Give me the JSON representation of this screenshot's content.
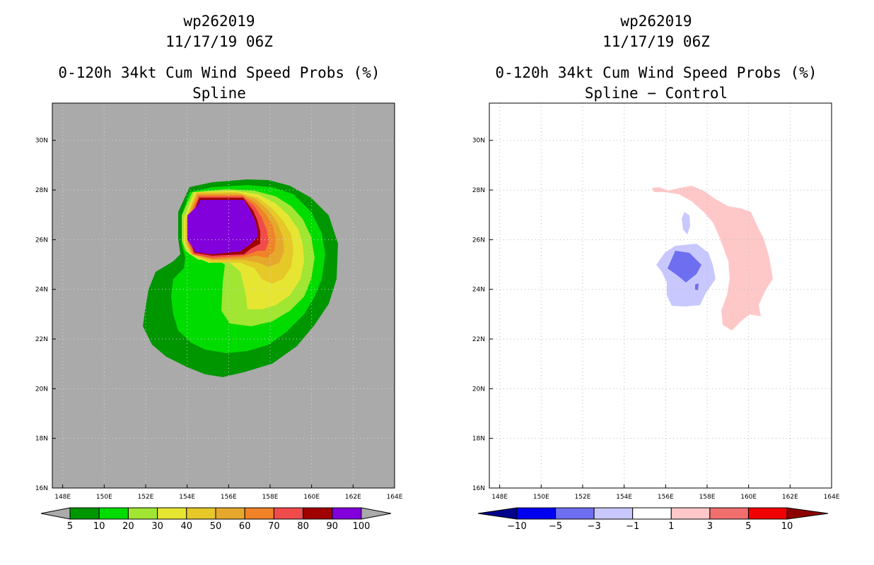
{
  "chart_data": [
    {
      "type": "heatmap",
      "storm_id": "wp262019",
      "datetime": "11/17/19 06Z",
      "title": "0-120h 34kt Cum Wind Speed Probs (%)",
      "subtitle": "Spline",
      "xlabel": "",
      "ylabel": "",
      "xlim": [
        147.5,
        164
      ],
      "ylim": [
        16,
        31.5
      ],
      "x_ticks": [
        "148E",
        "150E",
        "152E",
        "154E",
        "156E",
        "158E",
        "160E",
        "162E",
        "164E"
      ],
      "y_ticks": [
        "16N",
        "18N",
        "20N",
        "22N",
        "24N",
        "26N",
        "28N",
        "30N"
      ],
      "grid": true,
      "colorbar_levels": [
        "5",
        "10",
        "20",
        "30",
        "40",
        "50",
        "60",
        "70",
        "80",
        "90",
        "100"
      ],
      "colors": {
        "background": "#aaaaaa",
        "bins": [
          "#009600",
          "#00dc00",
          "#a0e632",
          "#e6e632",
          "#e6c828",
          "#e6a82c",
          "#f08228",
          "#f04b4b",
          "#a00000",
          "#8200dc"
        ]
      }
    },
    {
      "type": "heatmap",
      "storm_id": "wp262019",
      "datetime": "11/17/19 06Z",
      "title": "0-120h 34kt Cum Wind Speed Probs (%)",
      "subtitle": "Spline − Control",
      "xlabel": "",
      "ylabel": "",
      "xlim": [
        147.5,
        164
      ],
      "ylim": [
        16,
        31.5
      ],
      "x_ticks": [
        "148E",
        "150E",
        "152E",
        "154E",
        "156E",
        "158E",
        "160E",
        "162E",
        "164E"
      ],
      "y_ticks": [
        "16N",
        "18N",
        "20N",
        "22N",
        "24N",
        "26N",
        "28N",
        "30N"
      ],
      "grid": true,
      "colorbar_levels": [
        "−10",
        "−5",
        "−3",
        "−1",
        "1",
        "3",
        "5",
        "10"
      ],
      "colors": {
        "background": "#ffffff",
        "bins": [
          "#00008c",
          "#0000f0",
          "#6e6ef0",
          "#c8c8ff",
          "#ffffff",
          "#ffc8c8",
          "#f06e6e",
          "#f00000",
          "#8c0000"
        ]
      }
    }
  ]
}
